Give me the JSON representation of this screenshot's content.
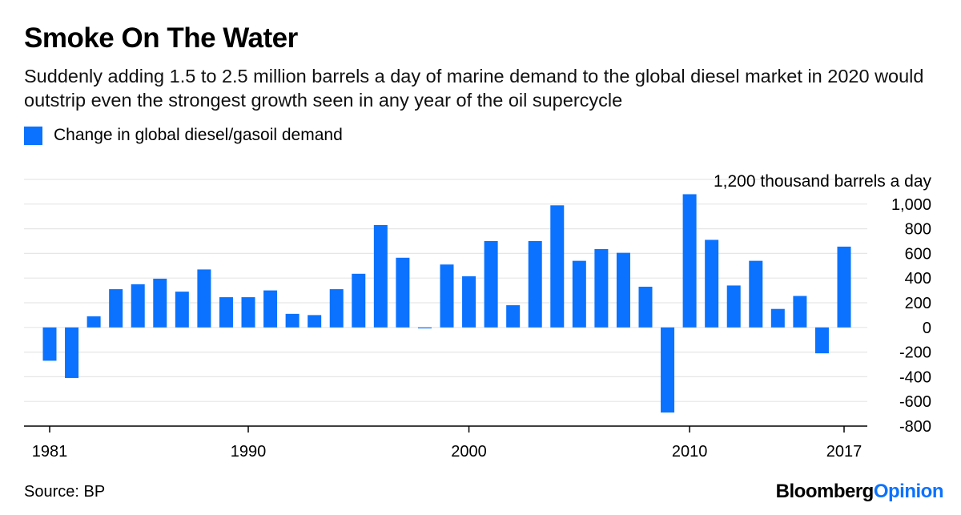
{
  "header": {
    "title": "Smoke On The Water",
    "subtitle": "Suddenly adding 1.5 to 2.5 million barrels a day of marine demand to the global diesel market in 2020 would outstrip even the strongest growth seen in any year of the oil supercycle"
  },
  "legend": {
    "label": "Change in global diesel/gasoil demand",
    "color": "#0a72ff"
  },
  "footer": {
    "source": "Source: BP",
    "brand_bold": "Bloomberg",
    "brand_accent": "Opinion",
    "brand_accent_color": "#0a72ff"
  },
  "chart_data": {
    "type": "bar",
    "unit_label": "1,200 thousand barrels a day",
    "categories": [
      "1981",
      "1982",
      "1983",
      "1984",
      "1985",
      "1986",
      "1987",
      "1988",
      "1989",
      "1990",
      "1991",
      "1992",
      "1993",
      "1994",
      "1995",
      "1996",
      "1997",
      "1998",
      "1999",
      "2000",
      "2001",
      "2002",
      "2003",
      "2004",
      "2005",
      "2006",
      "2007",
      "2008",
      "2009",
      "2010",
      "2011",
      "2012",
      "2013",
      "2014",
      "2015",
      "2016",
      "2017"
    ],
    "series": [
      {
        "values": [
          -270,
          -410,
          90,
          310,
          350,
          395,
          290,
          470,
          245,
          245,
          300,
          110,
          100,
          310,
          435,
          830,
          565,
          -5,
          510,
          415,
          700,
          180,
          700,
          990,
          540,
          635,
          605,
          330,
          -690,
          1080,
          710,
          340,
          540,
          150,
          255,
          -210,
          655
        ]
      }
    ],
    "ylim": [
      -800,
      1200
    ],
    "yticks": [
      "1,000",
      "800",
      "600",
      "400",
      "200",
      "0",
      "-200",
      "-400",
      "-600",
      "-800"
    ],
    "ytick_values": [
      1000,
      800,
      600,
      400,
      200,
      0,
      -200,
      -400,
      -600,
      -800
    ],
    "xtick_labels": [
      "1981",
      "1990",
      "2000",
      "2010",
      "2017"
    ],
    "grid": true,
    "bar_color": "#0a72ff",
    "legend_position": "top-left"
  }
}
